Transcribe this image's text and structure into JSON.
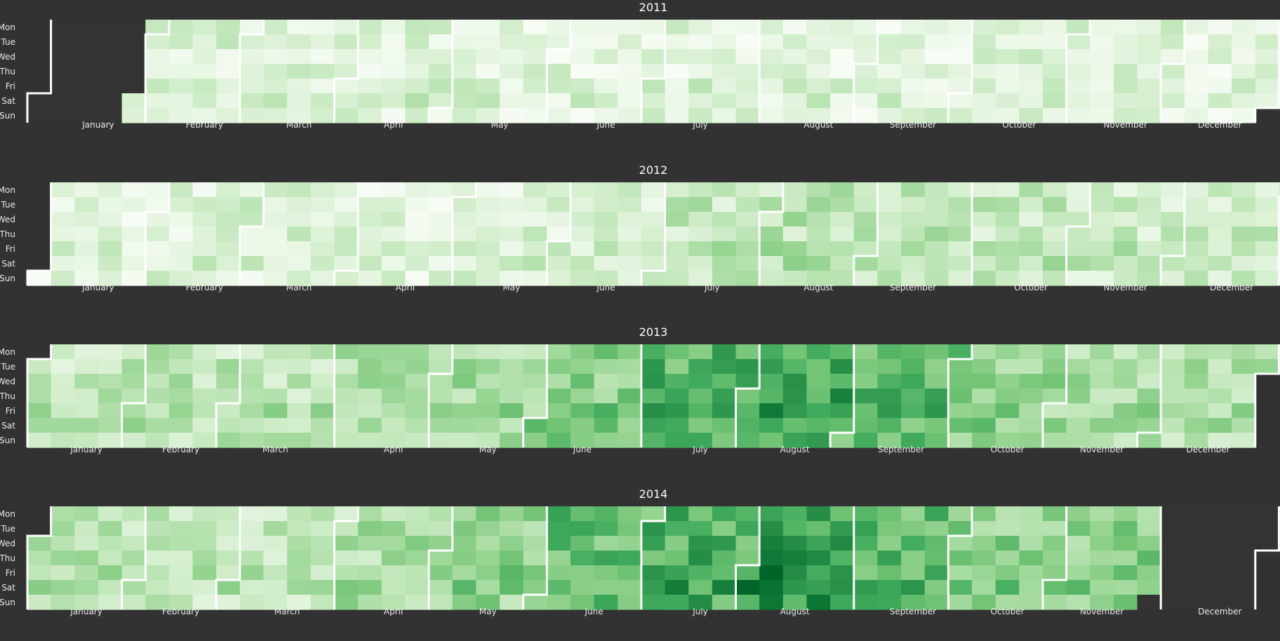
{
  "chart_data": {
    "type": "heatmap",
    "years": [
      "2011",
      "2012",
      "2013",
      "2014"
    ],
    "weekday_labels": [
      "Mon",
      "Tue",
      "Wed",
      "Thu",
      "Fri",
      "Sat",
      "Sun"
    ],
    "month_labels": [
      "January",
      "February",
      "March",
      "April",
      "May",
      "June",
      "July",
      "August",
      "September",
      "October",
      "November",
      "December"
    ],
    "scale": {
      "min": 0,
      "max": 1
    },
    "colors": {
      "background": "#323232",
      "low": "#f7fcf5",
      "high": "#00441b",
      "empty": "#333333",
      "border": "#ffffff"
    },
    "data_start": [
      "2011-01-29",
      "2012-01-01",
      "2013-01-01",
      "2014-01-01"
    ],
    "data_end": [
      "2011-12-31",
      "2012-12-31",
      "2013-12-31",
      "2014-11-29"
    ],
    "seasonal_level": [
      [
        0.18,
        0.18,
        0.16,
        0.18,
        0.14,
        0.14,
        0.16,
        0.14,
        0.14,
        0.16,
        0.16,
        0.12
      ],
      [
        0.12,
        0.18,
        0.18,
        0.14,
        0.18,
        0.22,
        0.3,
        0.34,
        0.32,
        0.3,
        0.26,
        0.26
      ],
      [
        0.3,
        0.32,
        0.34,
        0.4,
        0.42,
        0.5,
        0.66,
        0.72,
        0.62,
        0.46,
        0.4,
        0.36
      ],
      [
        0.34,
        0.32,
        0.32,
        0.4,
        0.46,
        0.62,
        0.68,
        0.76,
        0.62,
        0.5,
        0.5,
        0.3
      ]
    ]
  }
}
